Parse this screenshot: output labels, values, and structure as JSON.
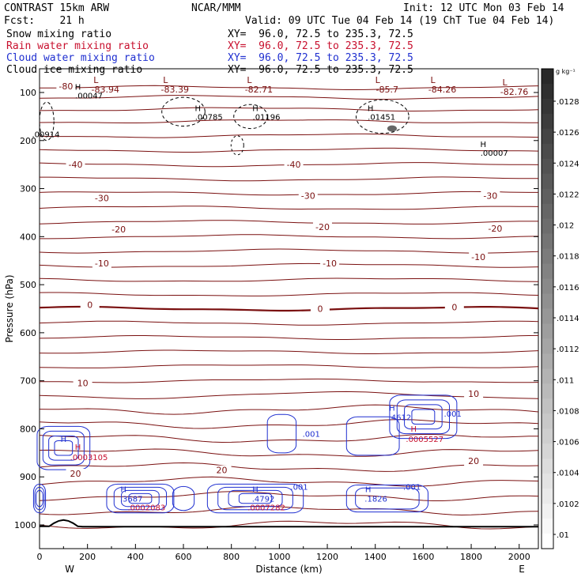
{
  "header": {
    "model": "CONTRAST 15km ARW",
    "org": "NCAR/MMM",
    "init": "Init: 12 UTC Mon 03 Feb 14",
    "fcst": "Fcst:    21 h",
    "valid": "Valid: 09 UTC Tue 04 Feb 14 (19 ChT Tue 04 Feb 14)"
  },
  "fields": [
    {
      "name": "Snow mixing ratio",
      "xy": "XY=  96.0, 72.5 to 235.3, 72.5",
      "color": "#000000"
    },
    {
      "name": "Rain water mixing ratio",
      "xy": "XY=  96.0, 72.5 to 235.3, 72.5",
      "color": "#c8102e"
    },
    {
      "name": "Cloud water mixing ratio",
      "xy": "XY=  96.0, 72.5 to 235.3, 72.5",
      "color": "#1f2fd0"
    },
    {
      "name": "Cloud ice mixing ratio",
      "xy": "XY=  96.0, 72.5 to 235.3, 72.5",
      "color": "#000000"
    }
  ],
  "colorbar": {
    "unit": "g kg⁻¹",
    "labels": [
      ".0128",
      ".0126",
      ".0124",
      ".0122",
      ".012",
      ".0118",
      ".0116",
      ".0114",
      ".0112",
      ".011",
      ".0108",
      ".0106",
      ".0104",
      ".0102",
      ".01"
    ]
  },
  "chart_data": {
    "type": "contour",
    "xlabel": "Distance (km)",
    "ylabel": "Pressure (hPa)",
    "xlim": [
      0,
      2080
    ],
    "ylim": [
      1050,
      50
    ],
    "x_ticks": [
      0,
      200,
      400,
      600,
      800,
      1000,
      1200,
      1400,
      1600,
      1800,
      2000
    ],
    "x_tick_labels": [
      "0",
      "200",
      "400",
      "600",
      "800",
      "1000",
      "1200",
      "1400",
      "1600",
      "1800",
      "2000"
    ],
    "y_ticks": [
      100,
      200,
      300,
      400,
      500,
      600,
      700,
      800,
      900,
      1000
    ],
    "y_tick_labels": [
      "100",
      "200",
      "300",
      "400",
      "500",
      "600",
      "700",
      "800",
      "900",
      "1000"
    ],
    "west_label": "W",
    "east_label": "E",
    "temperature_labels": [
      {
        "text": "-80",
        "x": 110,
        "p": 87
      },
      {
        "text": "-40",
        "x": 150,
        "p": 250
      },
      {
        "text": "-40",
        "x": 1060,
        "p": 250
      },
      {
        "text": "-30",
        "x": 260,
        "p": 320
      },
      {
        "text": "-30",
        "x": 1120,
        "p": 315
      },
      {
        "text": "-30",
        "x": 1880,
        "p": 315
      },
      {
        "text": "-20",
        "x": 330,
        "p": 385
      },
      {
        "text": "-20",
        "x": 1180,
        "p": 380
      },
      {
        "text": "-20",
        "x": 1900,
        "p": 383
      },
      {
        "text": "-10",
        "x": 260,
        "p": 455
      },
      {
        "text": "-10",
        "x": 1210,
        "p": 455
      },
      {
        "text": "-10",
        "x": 1830,
        "p": 442
      },
      {
        "text": "0",
        "x": 210,
        "p": 542
      },
      {
        "text": "0",
        "x": 1170,
        "p": 550
      },
      {
        "text": "0",
        "x": 1730,
        "p": 547
      },
      {
        "text": "10",
        "x": 180,
        "p": 705
      },
      {
        "text": "10",
        "x": 1810,
        "p": 727
      },
      {
        "text": "20",
        "x": 150,
        "p": 893
      },
      {
        "text": "20",
        "x": 760,
        "p": 886
      },
      {
        "text": "20",
        "x": 1810,
        "p": 867
      }
    ],
    "isotherms_p": [
      1000,
      970,
      940,
      910,
      880,
      850,
      820,
      790,
      760,
      730,
      700,
      670,
      640,
      610,
      580,
      550,
      520,
      490,
      460,
      430,
      400,
      370,
      340,
      310,
      280,
      250,
      220,
      190,
      160,
      135,
      110,
      90
    ],
    "low_markers": [
      {
        "label": "L",
        "value": "-83.94",
        "x": 235,
        "p": 90
      },
      {
        "label": "L",
        "value": "-83.39",
        "x": 525,
        "p": 90
      },
      {
        "label": "L",
        "value": "-82.71",
        "x": 875,
        "p": 90
      },
      {
        "label": "L",
        "value": "-85.7",
        "x": 1410,
        "p": 90
      },
      {
        "label": "L",
        "value": "-84.26",
        "x": 1640,
        "p": 90
      },
      {
        "label": "L",
        "value": "-82.76",
        "x": 1940,
        "p": 95
      }
    ],
    "snow_maxima": [
      {
        "label": "H",
        "value": ".00047",
        "x": 160,
        "p": 107
      },
      {
        "label": "H",
        "value": ".00785",
        "x": 660,
        "p": 152
      },
      {
        "label": "H",
        "value": ".01196",
        "x": 900,
        "p": 152
      },
      {
        "label": "H",
        "value": ".01451",
        "x": 1380,
        "p": 152
      },
      {
        "label": "H",
        "value": ".00007",
        "x": 1850,
        "p": 227
      },
      {
        "label": "",
        "value": ".00914",
        "x": 0,
        "p": 188
      }
    ],
    "cloud_water_maxima": [
      {
        "label": "H",
        "value": ".4612",
        "x": 1470,
        "p": 775
      },
      {
        "label": "",
        "value": ".001",
        "x": 1690,
        "p": 768
      },
      {
        "label": "",
        "value": ".001",
        "x": 1100,
        "p": 810
      },
      {
        "label": "H",
        "value": ".3687",
        "x": 350,
        "p": 945
      },
      {
        "label": "H",
        "value": ".4792",
        "x": 900,
        "p": 945
      },
      {
        "label": "",
        "value": ".001",
        "x": 1050,
        "p": 920
      },
      {
        "label": "H",
        "value": ".1826",
        "x": 1370,
        "p": 945
      },
      {
        "label": "",
        "value": ".001",
        "x": 1520,
        "p": 920
      },
      {
        "label": "H",
        "value": "",
        "x": 100,
        "p": 840
      }
    ],
    "rain_maxima": [
      {
        "label": "H",
        "value": ".0005527",
        "x": 1560,
        "p": 822
      },
      {
        "label": "H",
        "value": ".0003105",
        "x": 160,
        "p": 860
      },
      {
        "label": "",
        "value": ".0002083",
        "x": 400,
        "p": 965
      },
      {
        "label": "",
        "value": ".0007282",
        "x": 900,
        "p": 965
      }
    ]
  }
}
